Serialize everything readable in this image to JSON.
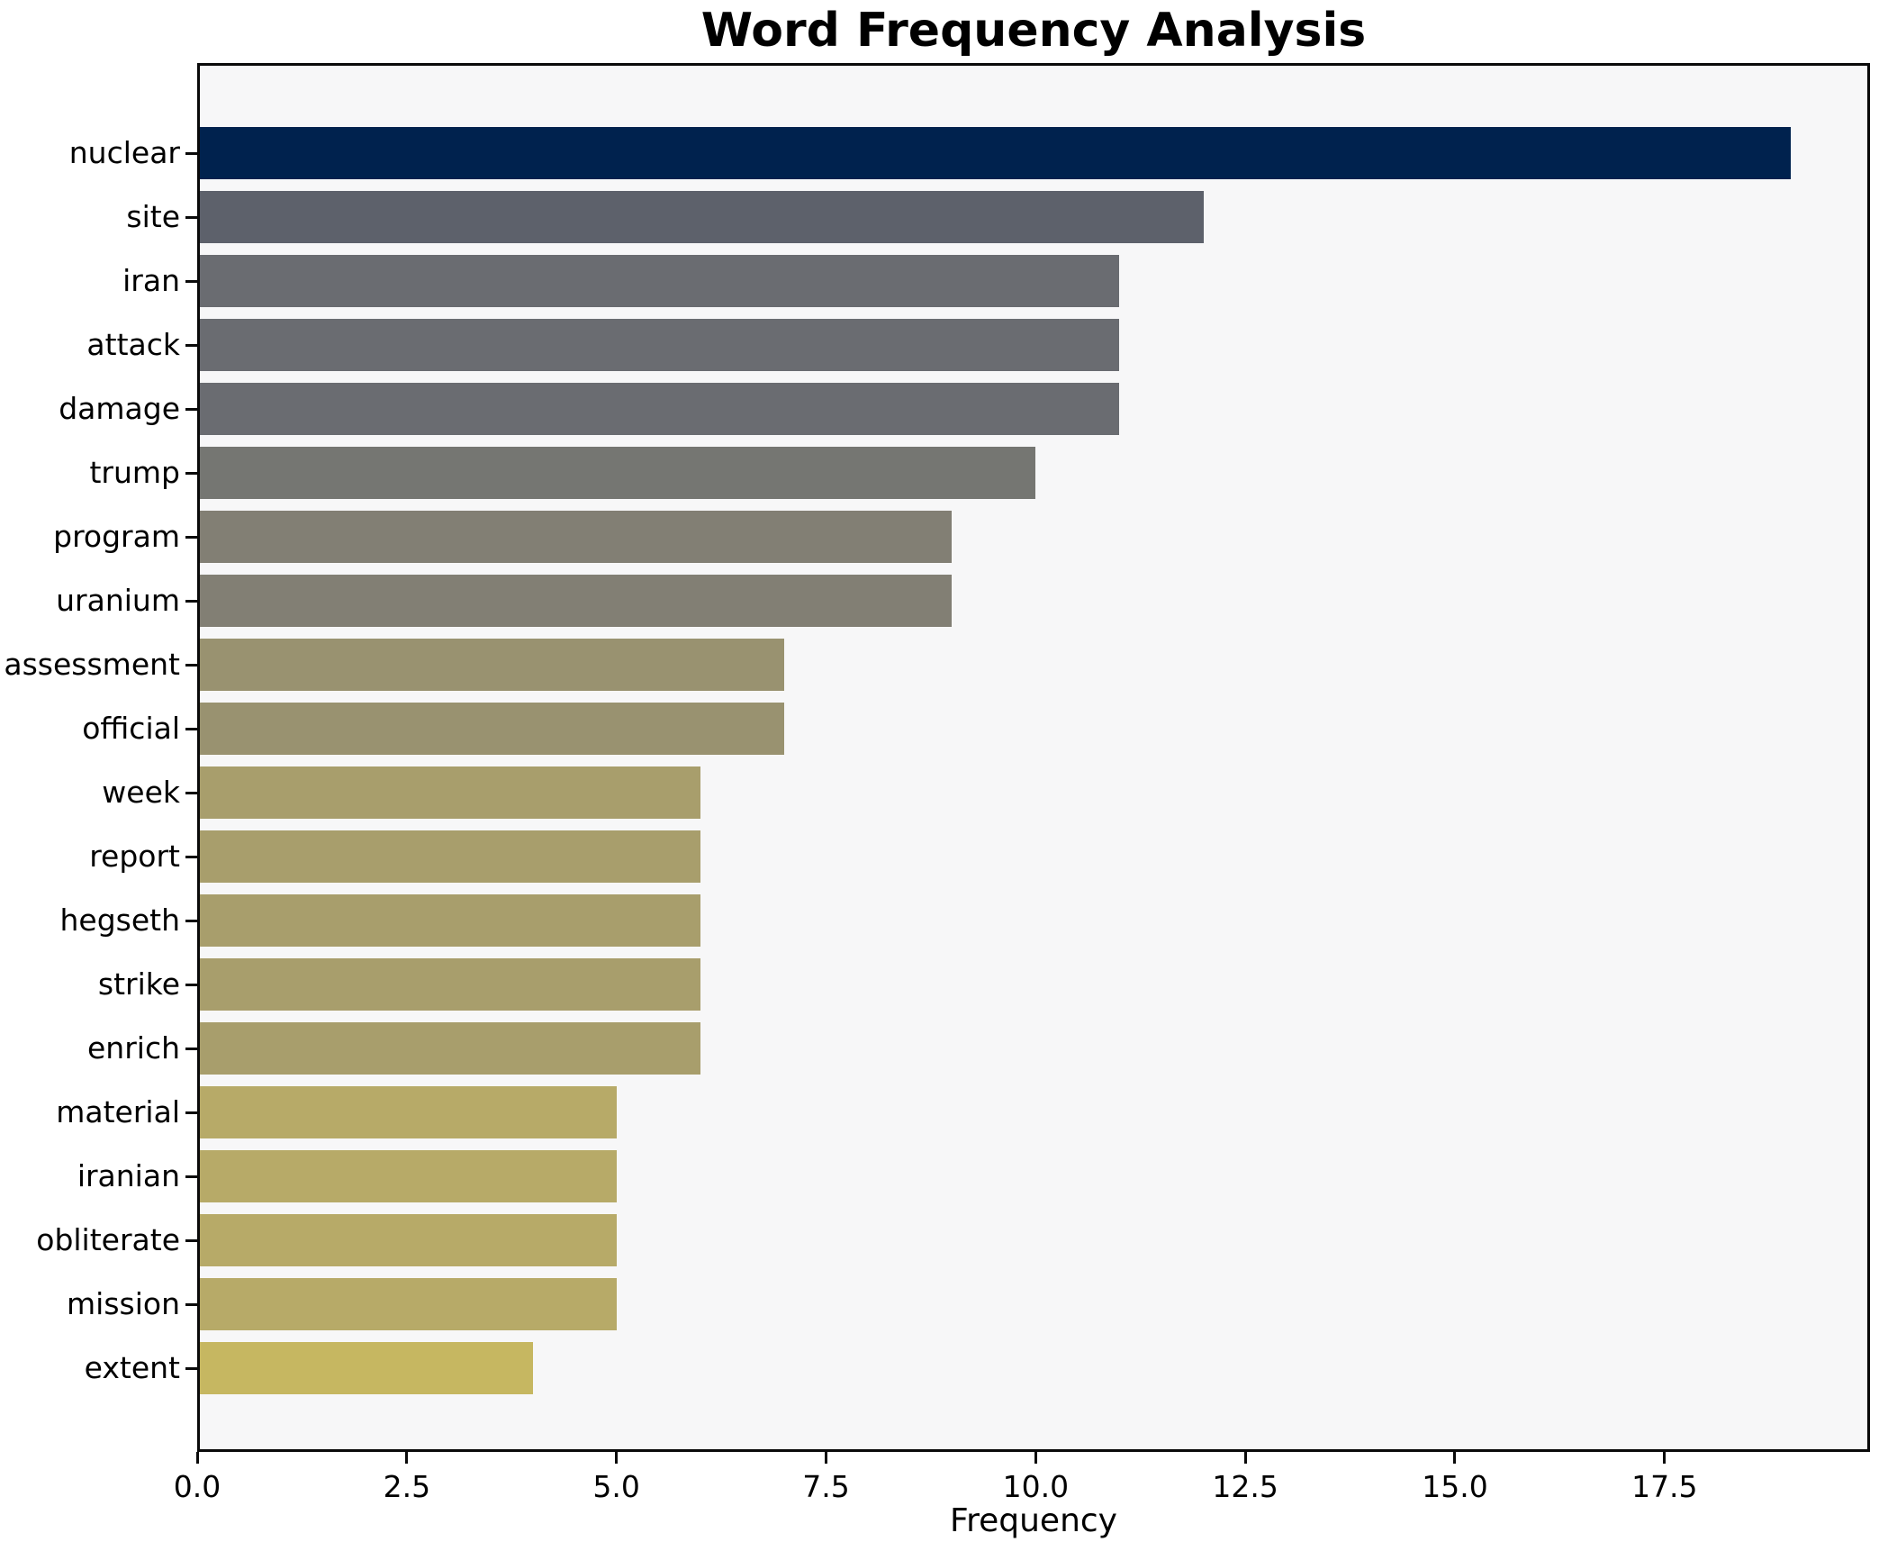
{
  "chart_data": {
    "type": "bar",
    "orientation": "horizontal",
    "title": "Word Frequency Analysis",
    "xlabel": "Frequency",
    "ylabel": "",
    "categories": [
      "nuclear",
      "site",
      "iran",
      "attack",
      "damage",
      "trump",
      "program",
      "uranium",
      "assessment",
      "official",
      "week",
      "report",
      "hegseth",
      "strike",
      "enrich",
      "material",
      "iranian",
      "obliterate",
      "mission",
      "extent"
    ],
    "values": [
      19,
      12,
      11,
      11,
      11,
      10,
      9,
      9,
      7,
      7,
      6,
      6,
      6,
      6,
      6,
      5,
      5,
      5,
      5,
      4
    ],
    "bar_colors": [
      "#00224e",
      "#5d616b",
      "#6a6c71",
      "#6a6c71",
      "#6a6c71",
      "#757672",
      "#827f74",
      "#827f74",
      "#999270",
      "#999270",
      "#a89e6c",
      "#a89e6c",
      "#a89e6c",
      "#a89e6c",
      "#a89e6c",
      "#b7aa68",
      "#b7aa68",
      "#b7aa68",
      "#b7aa68",
      "#c6b761"
    ],
    "x_tick_labels": [
      "0.0",
      "2.5",
      "5.0",
      "7.5",
      "10.0",
      "12.5",
      "15.0",
      "17.5"
    ],
    "x_tick_values": [
      0,
      2.5,
      5,
      7.5,
      10,
      12.5,
      15,
      17.5
    ],
    "xlim": [
      0,
      19.95
    ],
    "grid": false,
    "legend": "none",
    "plot_bg_color": "#f7f7f8",
    "figure_bg_color": "#ffffff",
    "spine_color": "#0a0a0a"
  }
}
